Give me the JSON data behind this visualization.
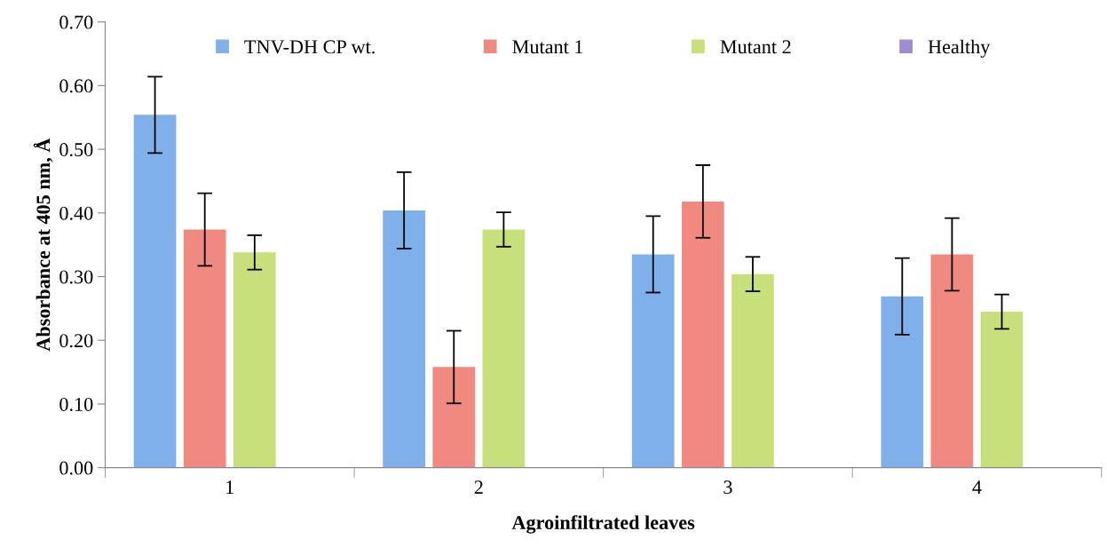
{
  "chart_data": {
    "type": "bar",
    "xlabel": "Agroinfiltrated leaves",
    "ylabel": "Absorbance at 405 nm, Å",
    "categories": [
      "1",
      "2",
      "3",
      "4"
    ],
    "series": [
      {
        "name": "TNV-DH CP wt.",
        "color": "#7fb0ea",
        "values": [
          0.554,
          0.404,
          0.335,
          0.269
        ],
        "errors": [
          0.06,
          0.06,
          0.06,
          0.06
        ]
      },
      {
        "name": "Mutant 1",
        "color": "#f08a80",
        "values": [
          0.374,
          0.158,
          0.418,
          0.335
        ],
        "errors": [
          0.057,
          0.057,
          0.057,
          0.057
        ]
      },
      {
        "name": "Mutant 2",
        "color": "#c8e07c",
        "values": [
          0.338,
          0.374,
          0.304,
          0.245
        ],
        "errors": [
          0.027,
          0.027,
          0.027,
          0.027
        ]
      },
      {
        "name": "Healthy",
        "color": "#a08cd0",
        "values": [
          null,
          null,
          null,
          null
        ]
      }
    ],
    "ylim": [
      0,
      0.7
    ],
    "yticks": [
      {
        "value": 0,
        "label": "0.00"
      },
      {
        "value": 0.1,
        "label": "0.10"
      },
      {
        "value": 0.2,
        "label": "0.20"
      },
      {
        "value": 0.3,
        "label": "0.30"
      },
      {
        "value": 0.4,
        "label": "0.40"
      },
      {
        "value": 0.5,
        "label": "0.50"
      },
      {
        "value": 0.6,
        "label": "0.60"
      },
      {
        "value": 0.7,
        "label": "0.70"
      }
    ],
    "grid": false,
    "legend": "top"
  }
}
